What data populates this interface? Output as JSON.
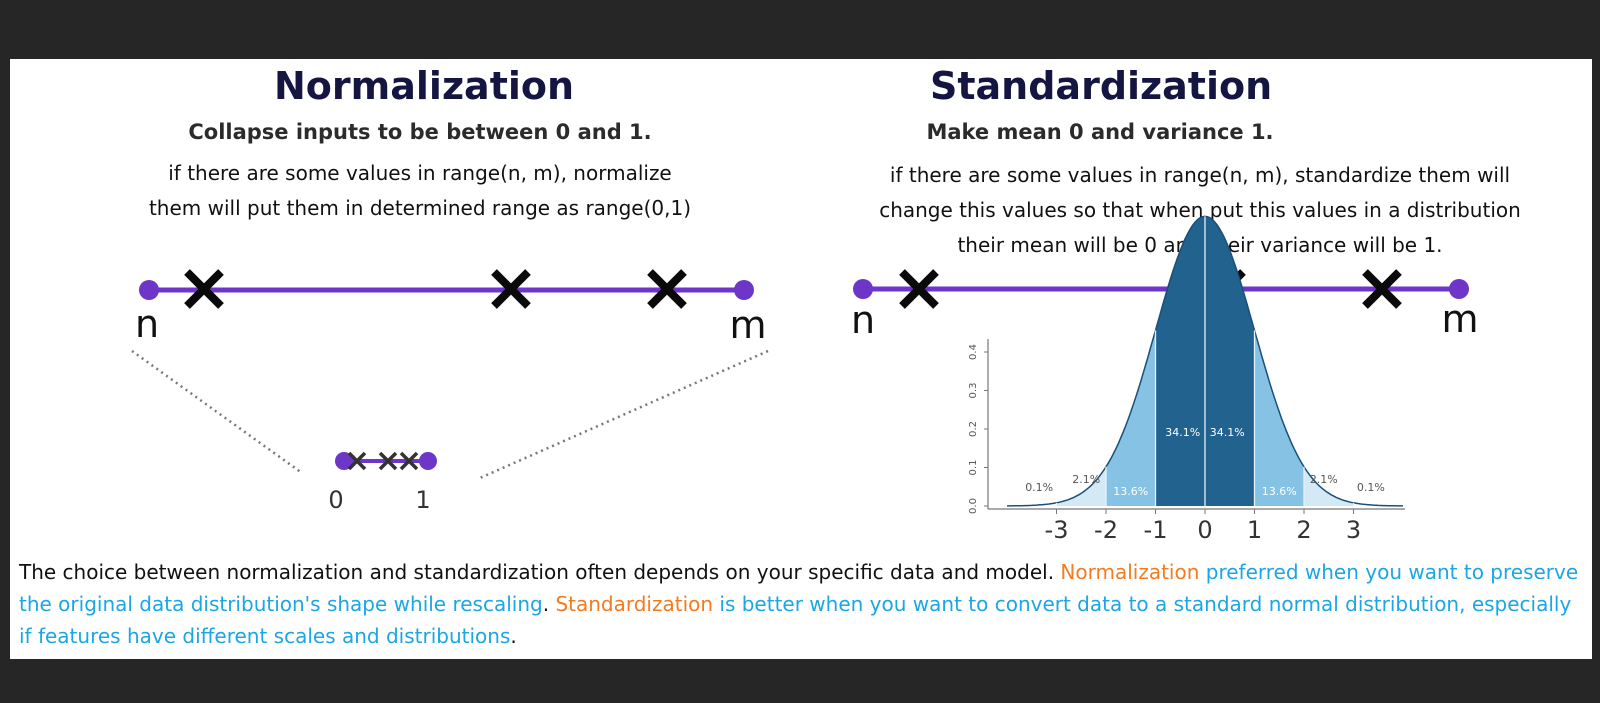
{
  "left": {
    "title": "Normalization",
    "subtitle": "Collapse inputs to be between 0 and 1.",
    "description_lines": [
      "if there are some values in range(n, m), normalize",
      "them will put them in determined range as range(0,1)"
    ],
    "line_start_label": "n",
    "line_end_label": "m",
    "mini_start_label": "0",
    "mini_end_label": "1"
  },
  "right": {
    "title": "Standardization",
    "subtitle": "Make mean 0 and variance 1.",
    "description_lines": [
      "if there are some values in range(n, m), standardize them will",
      "change this values so that when put this values in a distribution",
      "their mean will be 0 and their variance will be 1."
    ],
    "line_start_label": "n",
    "line_end_label": "m"
  },
  "bell_curve": {
    "y_ticks": [
      "0.0",
      "0.1",
      "0.2",
      "0.3",
      "0.4"
    ],
    "x_ticks": [
      "-3",
      "-2",
      "-1",
      "0",
      "1",
      "2",
      "3"
    ],
    "pct_outer": "0.1%",
    "pct_tail": "2.1%",
    "pct_mid": "13.6%",
    "pct_center": "34.1%"
  },
  "bottom": {
    "part1": "The choice between normalization and standardization often depends on your specific data and model. ",
    "norm_word": "Normalization",
    "part2": " preferred when you want to preserve the original data distribution's shape while rescaling",
    "part3": ". ",
    "std_word": "Standardization",
    "part4": " is better when you want to convert data to a standard normal distribution, especially if features have different scales and distributions",
    "part5": "."
  },
  "colors": {
    "title": "#141540",
    "line": "#6e35c9",
    "orange": "#f47b1f",
    "blue": "#1ba6e4",
    "curve_dark": "#21628f",
    "curve_mid": "#3b90c4",
    "curve_light": "#86c2e3"
  }
}
